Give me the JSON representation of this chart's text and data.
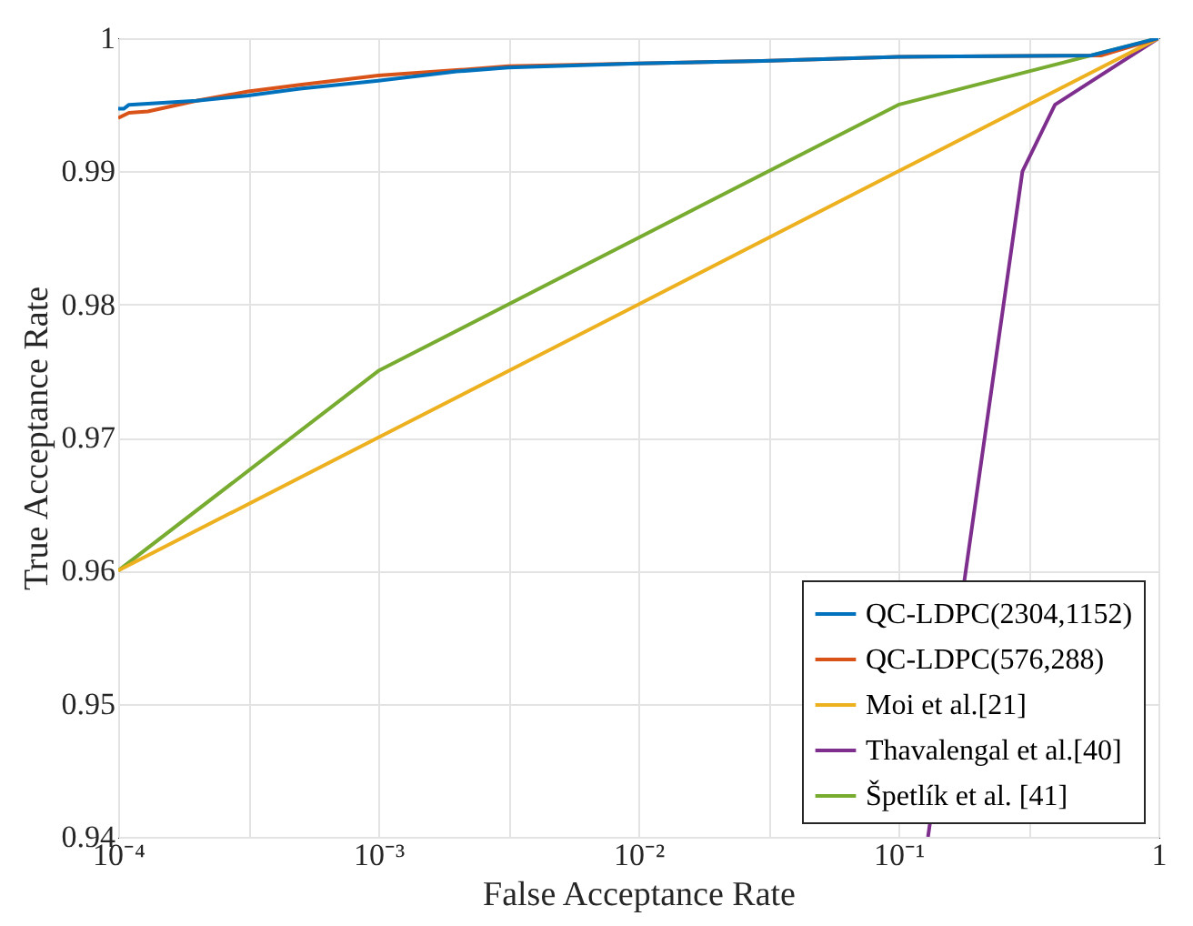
{
  "chart_data": {
    "type": "line",
    "xlabel": "False Acceptance Rate",
    "ylabel": "True Acceptance Rate",
    "log": "x",
    "grid": true,
    "legend": "bottom right",
    "line_style": "solid",
    "marker": "none",
    "xlim": [
      0.0001,
      1
    ],
    "ylim": [
      0.94,
      1
    ],
    "xticks": [
      {
        "value": 0.0001,
        "label": "10⁻⁴"
      },
      {
        "value": 0.00031623,
        "label": null
      },
      {
        "value": 0.001,
        "label": "10⁻³"
      },
      {
        "value": 0.0031623,
        "label": null
      },
      {
        "value": 0.01,
        "label": "10⁻²"
      },
      {
        "value": 0.031623,
        "label": null
      },
      {
        "value": 0.1,
        "label": "10⁻¹"
      },
      {
        "value": 0.31623,
        "label": null
      },
      1
    ],
    "yticks": [
      0.94,
      0.95,
      0.96,
      0.97,
      0.98,
      0.99,
      1
    ],
    "series": [
      {
        "name": "QC-LDPC(2304,1152)",
        "color": "#0072bd",
        "x": [
          0.0001,
          0.000105,
          0.00011,
          0.0002,
          0.00031623,
          0.0005,
          0.001,
          0.002,
          0.0031623,
          0.01,
          0.03,
          0.1,
          0.55,
          1
        ],
        "values": [
          0.9947,
          0.9947,
          0.995,
          0.9953,
          0.9957,
          0.9962,
          0.9968,
          0.9975,
          0.9978,
          0.9981,
          0.9983,
          0.9986,
          0.9987,
          1
        ]
      },
      {
        "name": "QC-LDPC(576,288)",
        "color": "#d95319",
        "x": [
          0.0001,
          0.00011,
          0.00013,
          0.0002,
          0.00031623,
          0.0005,
          0.001,
          0.002,
          0.0031623,
          0.01,
          0.03,
          0.1,
          0.6,
          1
        ],
        "values": [
          0.994,
          0.9944,
          0.9945,
          0.9953,
          0.996,
          0.9965,
          0.9972,
          0.9976,
          0.9979,
          0.9981,
          0.9983,
          0.9986,
          0.9987,
          1
        ]
      },
      {
        "name": "Moi et al.[21]",
        "color": "#edb120",
        "x": [
          0.0001,
          0.001,
          0.01,
          0.1,
          1
        ],
        "values": [
          0.96,
          0.97,
          0.98,
          0.99,
          1
        ]
      },
      {
        "name": "Thavalengal et al.[40]",
        "color": "#7e2f8e",
        "x": [
          0.13,
          0.3,
          0.4,
          1
        ],
        "values": [
          0.94,
          0.99,
          0.995,
          1
        ]
      },
      {
        "name": "Špetlík et al. [41]",
        "color": "#77ac30",
        "x": [
          0.0001,
          0.001,
          0.1,
          1
        ],
        "values": [
          0.96,
          0.975,
          0.995,
          1
        ]
      }
    ]
  }
}
